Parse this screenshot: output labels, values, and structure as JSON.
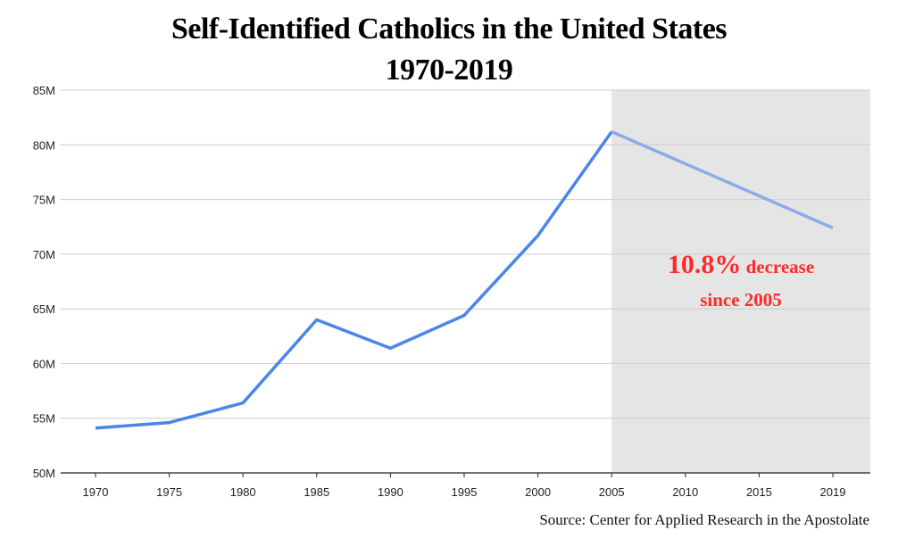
{
  "chart_data": {
    "type": "line",
    "title": "Self-Identified Catholics in the United States",
    "subtitle": "1970-2019",
    "xlabel": "",
    "ylabel": "",
    "categories": [
      "1970",
      "1975",
      "1980",
      "1985",
      "1990",
      "1995",
      "2000",
      "2005",
      "2010",
      "2015",
      "2019"
    ],
    "x": [
      1970,
      1975,
      1980,
      1985,
      1990,
      1995,
      2000,
      2005,
      2019
    ],
    "values": [
      54.1,
      54.6,
      56.4,
      64.0,
      61.4,
      64.4,
      71.7,
      81.2,
      72.4
    ],
    "ylim": [
      50,
      85
    ],
    "yticks": [
      50,
      55,
      60,
      65,
      70,
      75,
      80,
      85
    ],
    "ytick_labels": [
      "50M",
      "55M",
      "60M",
      "65M",
      "70M",
      "75M",
      "80M",
      "85M"
    ],
    "grid": true,
    "legend": "none",
    "shaded_region": {
      "from": "2005",
      "to": "end"
    },
    "annotation": {
      "big": "10.8%",
      "small": "decrease",
      "line2": "since 2005"
    },
    "source": "Source: Center for Applied Research in the Apostolate",
    "colors": {
      "line": "#4a86e8",
      "line_after_2005": "#8cabe6",
      "shade": "#e5e5e5",
      "annotation": "#ff2a2a"
    }
  }
}
